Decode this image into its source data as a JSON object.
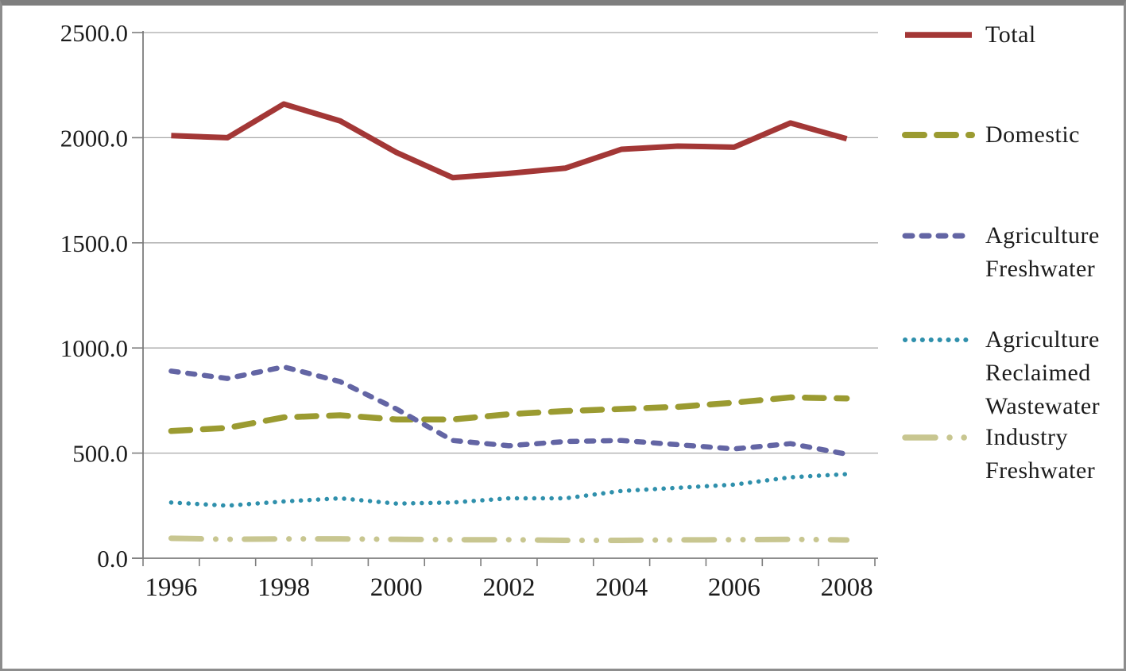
{
  "chart_data": {
    "type": "line",
    "title": "",
    "xlabel": "",
    "ylabel": "",
    "categories": [
      1996,
      1997,
      1998,
      1999,
      2000,
      2001,
      2002,
      2003,
      2004,
      2005,
      2006,
      2007,
      2008
    ],
    "x_tick_labels": [
      "1996",
      "1998",
      "2000",
      "2002",
      "2004",
      "2006",
      "2008"
    ],
    "y_ticks": [
      0,
      500,
      1000,
      1500,
      2000,
      2500
    ],
    "y_tick_labels": [
      "0.0",
      "500.0",
      "1000.0",
      "1500.0",
      "2000.0",
      "2500.0"
    ],
    "ylim": [
      0,
      2500
    ],
    "grid": "horizontal-only",
    "legend_position": "right",
    "series": [
      {
        "name": "Total",
        "color": "#a33736",
        "line_style": "solid",
        "values": [
          2010,
          2000,
          2160,
          2080,
          1930,
          1810,
          1830,
          1855,
          1945,
          1960,
          1955,
          2070,
          1995
        ]
      },
      {
        "name": "Domestic",
        "color": "#9b9b31",
        "line_style": "long-dash",
        "values": [
          605,
          620,
          670,
          680,
          660,
          660,
          685,
          700,
          710,
          720,
          740,
          765,
          760
        ]
      },
      {
        "name": "Agriculture Freshwater",
        "color": "#6365a4",
        "line_style": "dash",
        "values": [
          890,
          855,
          910,
          840,
          710,
          560,
          535,
          555,
          560,
          540,
          520,
          545,
          495
        ]
      },
      {
        "name": "Agriculture Reclaimed Wastewater",
        "color": "#2f90ac",
        "line_style": "dot",
        "values": [
          265,
          250,
          270,
          285,
          260,
          265,
          285,
          285,
          320,
          335,
          350,
          385,
          400
        ]
      },
      {
        "name": "Industry Freshwater",
        "color": "#c8c690",
        "line_style": "dash-dot",
        "values": [
          95,
          90,
          92,
          92,
          90,
          88,
          88,
          85,
          85,
          87,
          88,
          90,
          87
        ]
      }
    ]
  },
  "colors": {
    "axis": "#7d7d7d",
    "grid": "#a8a8a8",
    "text": "#1c1c1c",
    "frame": "#8d8d8d",
    "background": "#ffffff"
  }
}
